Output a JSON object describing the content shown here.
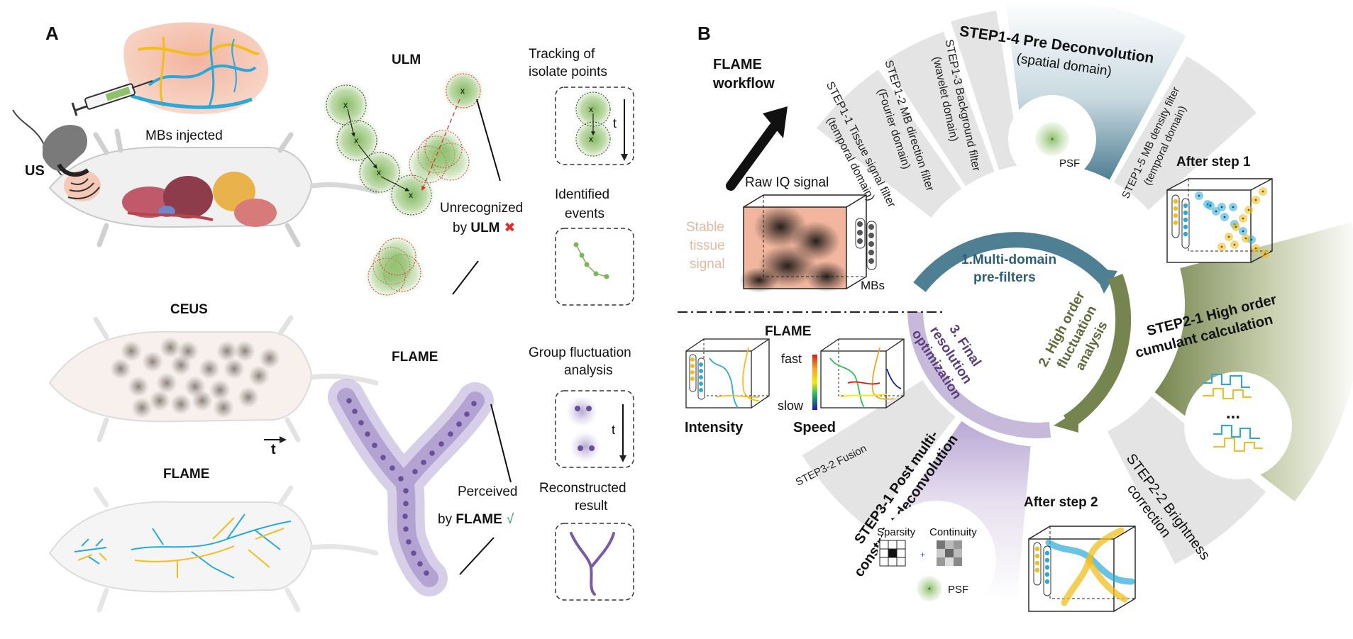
{
  "panel_a": {
    "label": "A",
    "us": "US",
    "mbs_injected": "MBs injected",
    "ceus": "CEUS",
    "flame_title": "FLAME",
    "time": "t",
    "ulm_title": "ULM",
    "tracking_line1": "Tracking of",
    "tracking_line2": "isolate points",
    "identified_line1": "Identified",
    "identified_line2": "events",
    "unrecognized_line1": "Unrecognized",
    "unrecognized_by": "by ",
    "unrecognized_method": "ULM",
    "unrecognized_mark": "✖",
    "flame_label": "FLAME",
    "group_line1": "Group fluctuation",
    "group_line2": "analysis",
    "perceived_line1": "Perceived",
    "perceived_by": "by ",
    "perceived_method": "FLAME",
    "perceived_mark": "√",
    "reconstructed_line1": "Reconstructed",
    "reconstructed_line2": "result"
  },
  "panel_b": {
    "label": "B",
    "workflow_line1": "FLAME",
    "workflow_line2": "workflow",
    "raw_iq": "Raw IQ signal",
    "stable_line1": "Stable",
    "stable_line2": "tissue",
    "stable_line3": "signal",
    "mbs": "MBs",
    "flame": "FLAME",
    "fast": "fast",
    "slow": "slow",
    "intensity": "Intensity",
    "speed": "Speed",
    "ring_step1_line1": "1.Multi-domain",
    "ring_step1_line2": "pre-filters",
    "ring_step2_line1": "2. High order",
    "ring_step2_line2": "fluctuation",
    "ring_step2_line3": "analysis",
    "ring_step3_line1": "3. Final",
    "ring_step3_line2": "resolution",
    "ring_step3_line3": "optimization",
    "step1_1_line1": "STEP1-1 Tissue signal filter",
    "step1_1_line2": "(temporal domain)",
    "step1_2_line1": "STEP1-2 MB direction filter",
    "step1_2_line2": "(Fourier domain)",
    "step1_3_line1": "STEP1-3 Background filter",
    "step1_3_line2": "(wavelet domain)",
    "step1_4_line1": "STEP1-4 Pre Deconvolution",
    "step1_4_line2": "(spatial domain)",
    "step1_5_line1": "STEP1-5 MB density filter",
    "step1_5_line2": "(temporal domain)",
    "psf": "PSF",
    "after_step1": "After step 1",
    "step2_1_line1": "STEP2-1 High order",
    "step2_1_line2": "cumulant calculation",
    "ellipsis": "...",
    "step2_2_line1": "STEP2-2 Brightness",
    "step2_2_line2": "correction",
    "after_step2": "After step 2",
    "step3_1_line1": "STEP3-1 Post multi-",
    "step3_1_line2": "constraint deconvolution",
    "sparsity": "Sparsity",
    "plus": "+",
    "continuity": "Continuity",
    "psf2": "PSF",
    "step3_2": "STEP3-2 Fusion"
  },
  "colors": {
    "green": "#7fb55a",
    "purple": "#8a6fb5",
    "blue": "#29a9d8",
    "yellow": "#f2bd1d",
    "teal": "#4f7f93",
    "olive": "#76854f",
    "lilac": "#c7b9da",
    "sector_gray": "#e3e3e3"
  }
}
